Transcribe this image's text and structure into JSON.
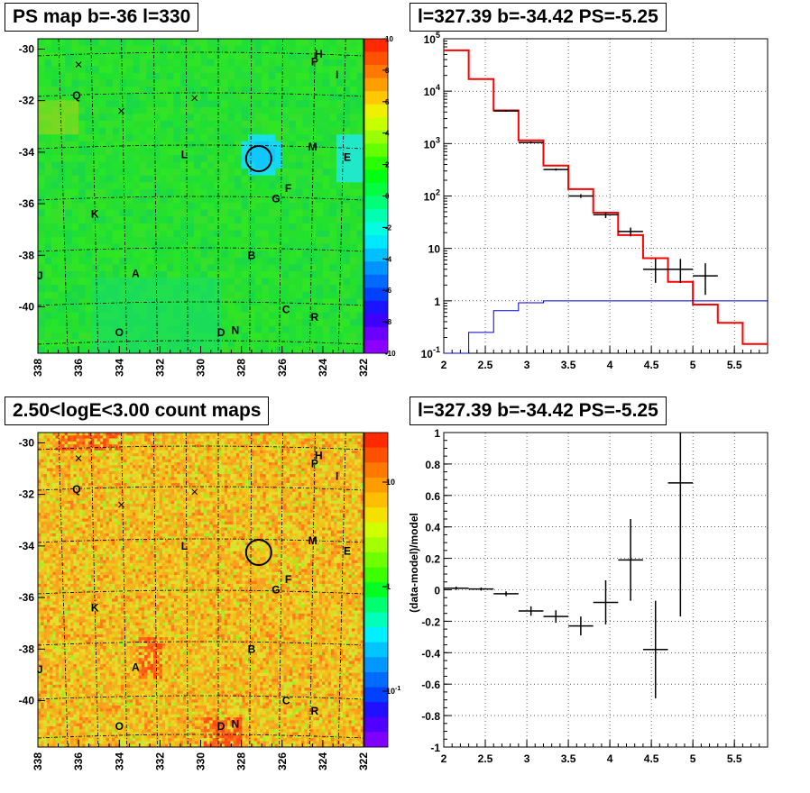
{
  "panels": {
    "top_left_title": "PS map b=-36 l=330",
    "top_right_title": "l=327.39 b=-34.42 PS=-5.25",
    "bottom_left_title": "2.50<logE<3.00 count maps",
    "bottom_right_title": "l=327.39 b=-34.42 PS=-5.25"
  },
  "colors": {
    "map_green": "#22e22e",
    "map_warm": "#f4b21c",
    "model_red": "#ff0000",
    "model_blue": "#0000cc",
    "data_black": "#000000"
  },
  "chart_data": [
    {
      "type": "heatmap",
      "title": "PS map b=-36 l=330",
      "x_ticks": [
        "338",
        "336",
        "334",
        "332",
        "330",
        "328",
        "326",
        "324",
        "322"
      ],
      "y_ticks": [
        "-30",
        "-32",
        "-34",
        "-36",
        "-38",
        "-40"
      ],
      "xlim": [
        338,
        322
      ],
      "ylim": [
        -41.8,
        -29.6
      ],
      "colorbar": {
        "min": -10,
        "max": 10,
        "ticks": [
          "10",
          "8",
          "6",
          "4",
          "2",
          "0",
          "-2",
          "-4",
          "-6",
          "-8",
          "-10"
        ]
      },
      "markers": [
        {
          "label": "Q",
          "l": 336.1,
          "b": -31.8
        },
        {
          "label": "P",
          "l": 324.4,
          "b": -30.5
        },
        {
          "label": "H",
          "l": 324.2,
          "b": -30.2
        },
        {
          "label": "I",
          "l": 323.3,
          "b": -31.0
        },
        {
          "label": "L",
          "l": 330.8,
          "b": -34.1
        },
        {
          "label": "M",
          "l": 324.5,
          "b": -33.8
        },
        {
          "label": "E",
          "l": 322.8,
          "b": -34.2
        },
        {
          "label": "F",
          "l": 325.7,
          "b": -35.4
        },
        {
          "label": "G",
          "l": 326.3,
          "b": -35.8
        },
        {
          "label": "K",
          "l": 335.2,
          "b": -36.4
        },
        {
          "label": "B",
          "l": 327.5,
          "b": -38.0
        },
        {
          "label": "J",
          "l": 337.9,
          "b": -38.8
        },
        {
          "label": "A",
          "l": 333.2,
          "b": -38.7
        },
        {
          "label": "C",
          "l": 325.8,
          "b": -40.1
        },
        {
          "label": "R",
          "l": 324.4,
          "b": -40.4
        },
        {
          "label": "O",
          "l": 334.0,
          "b": -41.0
        },
        {
          "label": "D",
          "l": 329.0,
          "b": -41.0
        },
        {
          "label": "N",
          "l": 328.3,
          "b": -40.9
        }
      ],
      "crosses": [
        {
          "l": 336.0,
          "b": -30.6
        },
        {
          "l": 333.9,
          "b": -32.4
        },
        {
          "l": 330.3,
          "b": -31.9
        }
      ],
      "circle": {
        "l": 327.15,
        "b": -34.25
      }
    },
    {
      "type": "line",
      "title": "l=327.39 b=-34.42 PS=-5.25",
      "xlim": [
        2,
        5.9
      ],
      "ylim_log": [
        0.1,
        100000
      ],
      "x_ticks": [
        "2",
        "2.5",
        "3",
        "3.5",
        "4",
        "4.5",
        "5",
        "5.5"
      ],
      "y_ticks": [
        "10^5",
        "10^4",
        "10^3",
        "10^2",
        "10",
        "1",
        "10^-1"
      ],
      "series": [
        {
          "style": "step",
          "color": "#ff0000",
          "edges": [
            2.0,
            2.3,
            2.6,
            2.9,
            3.2,
            3.5,
            3.8,
            4.1,
            4.4,
            4.7,
            5.0,
            5.3,
            5.6,
            5.9
          ],
          "values": [
            60000,
            17000,
            4300,
            1150,
            380,
            135,
            48,
            18,
            6.5,
            2.3,
            0.85,
            0.38,
            0.15
          ]
        },
        {
          "style": "step",
          "color": "#0000cc",
          "edges": [
            2.0,
            2.3,
            2.6,
            2.9,
            3.2,
            3.5,
            3.8,
            4.1,
            4.4,
            4.7,
            5.0,
            5.3,
            5.6,
            5.9
          ],
          "values": [
            0.1,
            0.25,
            0.65,
            0.92,
            1.0,
            1.0,
            1.0,
            1.0,
            1.0,
            1.0,
            1.0,
            1.0,
            1.0
          ]
        },
        {
          "style": "errorbar",
          "color": "#000000",
          "x": [
            2.75,
            3.05,
            3.35,
            3.65,
            3.95,
            4.25,
            4.55,
            4.85,
            5.15
          ],
          "y": [
            4200,
            1050,
            320,
            100,
            44,
            21,
            4,
            4,
            3
          ],
          "y_low": [
            4050,
            1010,
            305,
            92,
            38,
            17,
            2.2,
            2.2,
            1.3
          ],
          "y_high": [
            4350,
            1090,
            335,
            108,
            50,
            25,
            6.3,
            6.3,
            5.2
          ],
          "x_half_width": 0.15
        }
      ]
    },
    {
      "type": "scatter",
      "title": "2.50<logE<3.00 count maps",
      "subtype": "heatmap",
      "x_ticks": [
        "338",
        "336",
        "334",
        "332",
        "330",
        "328",
        "326",
        "324",
        "322"
      ],
      "y_ticks": [
        "-30",
        "-32",
        "-34",
        "-36",
        "-38",
        "-40"
      ],
      "colorbar": {
        "scale": "log",
        "ticks": [
          "10",
          "1",
          "10^-1"
        ]
      },
      "markers": [
        {
          "label": "Q",
          "l": 336.1,
          "b": -31.8
        },
        {
          "label": "P",
          "l": 324.4,
          "b": -30.8
        },
        {
          "label": "H",
          "l": 324.2,
          "b": -30.5
        },
        {
          "label": "I",
          "l": 323.3,
          "b": -31.3
        },
        {
          "label": "L",
          "l": 330.8,
          "b": -34.0
        },
        {
          "label": "M",
          "l": 324.5,
          "b": -33.8
        },
        {
          "label": "E",
          "l": 322.8,
          "b": -34.2
        },
        {
          "label": "F",
          "l": 325.7,
          "b": -35.3
        },
        {
          "label": "G",
          "l": 326.3,
          "b": -35.7
        },
        {
          "label": "K",
          "l": 335.2,
          "b": -36.4
        },
        {
          "label": "B",
          "l": 327.5,
          "b": -38.0
        },
        {
          "label": "J",
          "l": 337.9,
          "b": -38.8
        },
        {
          "label": "A",
          "l": 333.2,
          "b": -38.7
        },
        {
          "label": "C",
          "l": 325.8,
          "b": -40.0
        },
        {
          "label": "R",
          "l": 324.4,
          "b": -40.4
        },
        {
          "label": "O",
          "l": 334.0,
          "b": -41.0
        },
        {
          "label": "D",
          "l": 329.0,
          "b": -41.0
        },
        {
          "label": "N",
          "l": 328.3,
          "b": -40.9
        }
      ],
      "crosses": [
        {
          "l": 336.0,
          "b": -30.6
        },
        {
          "l": 333.9,
          "b": -32.4
        },
        {
          "l": 330.3,
          "b": -31.9
        }
      ],
      "circle": {
        "l": 327.15,
        "b": -34.25
      }
    },
    {
      "type": "scatter",
      "title": "l=327.39 b=-34.42 PS=-5.25",
      "ylabel": "(data-model)/model",
      "xlim": [
        2,
        5.9
      ],
      "ylim": [
        -1,
        1
      ],
      "x_ticks": [
        "2",
        "2.5",
        "3",
        "3.5",
        "4",
        "4.5",
        "5",
        "5.5"
      ],
      "y_ticks": [
        "1",
        "0.8",
        "0.6",
        "0.4",
        "0.2",
        "0",
        "-0.2",
        "-0.4",
        "-0.6",
        "-0.8",
        "-1"
      ],
      "series": [
        {
          "style": "errorbar",
          "x": [
            2.15,
            2.45,
            2.75,
            3.05,
            3.35,
            3.65,
            3.95,
            4.25,
            4.55,
            4.85
          ],
          "y": [
            0.01,
            0.005,
            -0.025,
            -0.135,
            -0.17,
            -0.23,
            -0.08,
            0.19,
            -0.38,
            0.68
          ],
          "y_err": [
            0.01,
            0.01,
            0.015,
            0.03,
            0.04,
            0.06,
            0.14,
            0.26,
            0.31,
            0.85
          ],
          "x_half_width": 0.15
        }
      ]
    }
  ]
}
